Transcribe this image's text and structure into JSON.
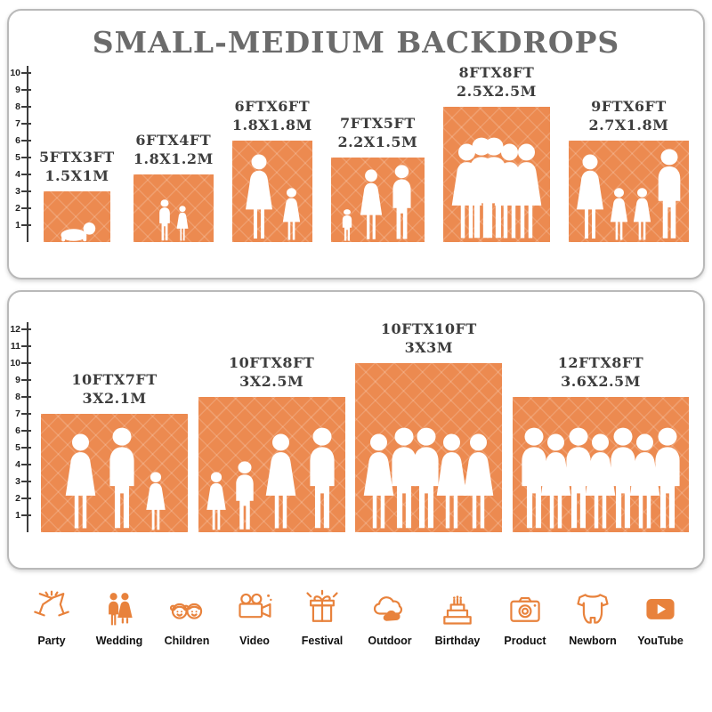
{
  "title": "SMALL-MEDIUM BACKDROPS",
  "colors": {
    "accent_orange": "#EC8A50",
    "icon_orange": "#E8823C",
    "title_gray": "#6B6B6B",
    "label_gray": "#3D3D3D"
  },
  "panels": [
    {
      "name": "small-medium",
      "ruler_ticks": [
        1,
        2,
        3,
        4,
        5,
        6,
        7,
        8,
        9,
        10
      ],
      "backdrops": [
        {
          "size_ft": "5FTX3FT",
          "size_m": "1.5X1M",
          "width_ft": 5,
          "height_ft": 3,
          "figures": [
            "baby"
          ]
        },
        {
          "size_ft": "6FTX4FT",
          "size_m": "1.8X1.2M",
          "width_ft": 6,
          "height_ft": 4,
          "figures": [
            "boy",
            "girl"
          ]
        },
        {
          "size_ft": "6FTX6FT",
          "size_m": "1.8X1.8M",
          "width_ft": 6,
          "height_ft": 6,
          "figures": [
            "woman",
            "girl"
          ]
        },
        {
          "size_ft": "7FTX5FT",
          "size_m": "2.2X1.5M",
          "width_ft": 7,
          "height_ft": 5,
          "figures": [
            "toddler",
            "woman",
            "man"
          ]
        },
        {
          "size_ft": "8FTX8FT",
          "size_m": "2.5X2.5M",
          "width_ft": 8,
          "height_ft": 8,
          "figures": [
            "woman",
            "man",
            "man",
            "woman",
            "woman"
          ]
        },
        {
          "size_ft": "9FTX6FT",
          "size_m": "2.7X1.8M",
          "width_ft": 9,
          "height_ft": 6,
          "figures": [
            "woman",
            "girl",
            "girl",
            "man"
          ]
        }
      ]
    },
    {
      "name": "medium-large",
      "ruler_ticks": [
        1,
        2,
        3,
        4,
        5,
        6,
        7,
        8,
        9,
        10,
        11,
        12
      ],
      "backdrops": [
        {
          "size_ft": "10FTX7FT",
          "size_m": "3X2.1M",
          "width_ft": 10,
          "height_ft": 7,
          "figures": [
            "woman",
            "man",
            "girl"
          ]
        },
        {
          "size_ft": "10FTX8FT",
          "size_m": "3X2.5M",
          "width_ft": 10,
          "height_ft": 8,
          "figures": [
            "girl",
            "boy",
            "woman",
            "man"
          ]
        },
        {
          "size_ft": "10FTX10FT",
          "size_m": "3X3M",
          "width_ft": 10,
          "height_ft": 10,
          "figures": [
            "woman",
            "man",
            "man",
            "woman",
            "woman"
          ]
        },
        {
          "size_ft": "12FTX8FT",
          "size_m": "3.6X2.5M",
          "width_ft": 12,
          "height_ft": 8,
          "figures": [
            "man",
            "woman",
            "man",
            "woman",
            "man",
            "woman",
            "man"
          ]
        }
      ]
    }
  ],
  "categories": [
    {
      "label": "Party",
      "icon": "party-icon"
    },
    {
      "label": "Wedding",
      "icon": "wedding-icon"
    },
    {
      "label": "Children",
      "icon": "children-icon"
    },
    {
      "label": "Video",
      "icon": "video-icon"
    },
    {
      "label": "Festival",
      "icon": "festival-icon"
    },
    {
      "label": "Outdoor",
      "icon": "outdoor-icon"
    },
    {
      "label": "Birthday",
      "icon": "birthday-icon"
    },
    {
      "label": "Product",
      "icon": "product-icon"
    },
    {
      "label": "Newborn",
      "icon": "newborn-icon"
    },
    {
      "label": "YouTube",
      "icon": "youtube-icon"
    }
  ]
}
